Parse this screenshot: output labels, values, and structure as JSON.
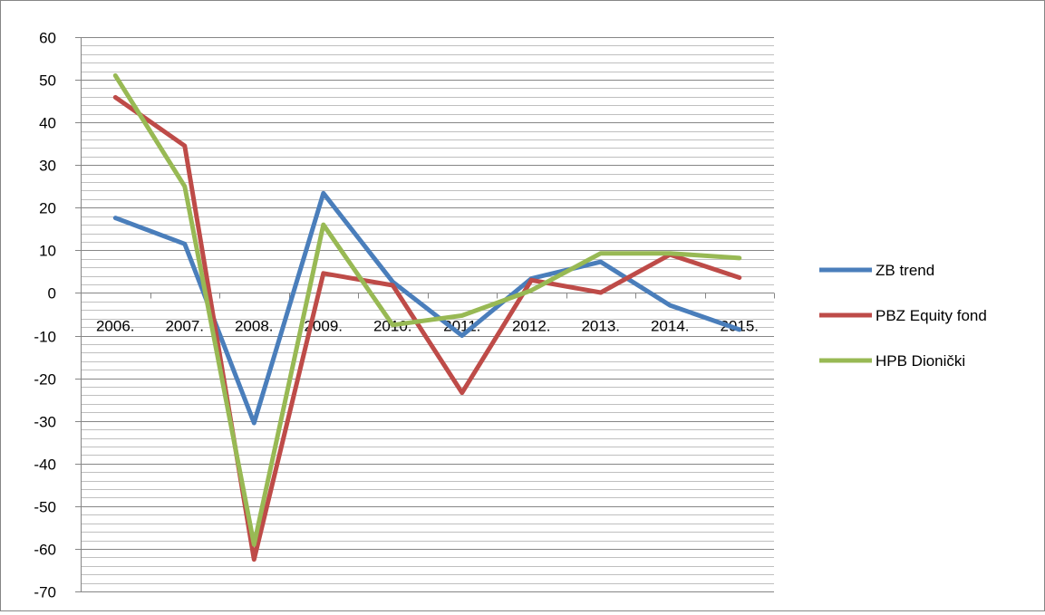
{
  "chart_data": {
    "type": "line",
    "title": "",
    "xlabel": "",
    "ylabel": "",
    "categories": [
      "2006.",
      "2007.",
      "2008.",
      "2009.",
      "2010.",
      "2011.",
      "2012.",
      "2013.",
      "2014.",
      "2015."
    ],
    "ylim": [
      -70,
      60
    ],
    "ytick_step": 10,
    "minor_grid_step": 2,
    "grid": true,
    "legend_position": "right",
    "series": [
      {
        "name": "ZB trend",
        "color": "#4a7ebb",
        "values": [
          17.6,
          11.5,
          -30.5,
          23.4,
          2.6,
          -10.0,
          3.4,
          7.3,
          -2.9,
          -8.6
        ]
      },
      {
        "name": "PBZ Equity fond",
        "color": "#be4b48",
        "values": [
          45.9,
          34.5,
          -62.5,
          4.6,
          1.8,
          -23.4,
          3.0,
          0.1,
          9.0,
          3.6
        ]
      },
      {
        "name": "HPB Dionički",
        "color": "#98b954",
        "values": [
          51.0,
          25.0,
          -59.0,
          16.0,
          -7.5,
          -5.3,
          0.6,
          9.3,
          9.3,
          8.2
        ]
      }
    ]
  }
}
